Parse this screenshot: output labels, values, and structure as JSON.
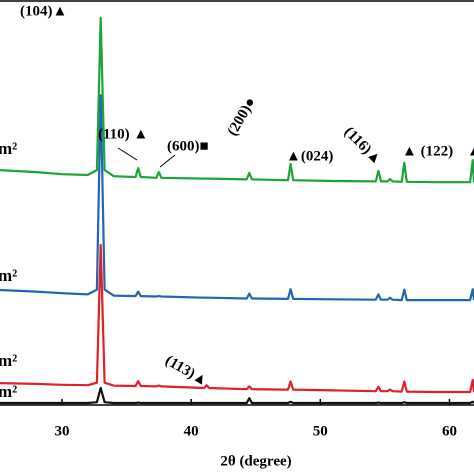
{
  "chart_data": {
    "type": "line",
    "x_label": "2θ (degree)",
    "x": [
      25.2,
      28,
      30,
      32,
      32.7,
      33.0,
      33.3,
      34,
      35.7,
      35.9,
      36.1,
      37.3,
      37.5,
      37.7,
      41,
      41.2,
      41.4,
      44.3,
      44.5,
      44.7,
      47.5,
      47.7,
      47.9,
      51,
      54.3,
      54.5,
      54.7,
      55.2,
      55.4,
      55.6,
      56.3,
      56.5,
      56.7,
      59,
      61.6,
      61.8,
      61.9
    ],
    "xlim": [
      25.2,
      61.9
    ],
    "xticks": [
      30,
      40,
      50,
      60
    ],
    "ylim": [
      0,
      100
    ],
    "series": [
      {
        "name": "m²",
        "color": "#1aa637",
        "values": [
          58,
          57.5,
          57,
          56.8,
          58,
          95.6,
          58,
          56.5,
          56.3,
          58.5,
          56.3,
          56.1,
          57.5,
          56.1,
          55.9,
          55.9,
          55.9,
          55.7,
          57.3,
          55.7,
          55.5,
          59.5,
          55.5,
          55.3,
          55.2,
          57.8,
          55.2,
          55.2,
          55.8,
          55.2,
          55.1,
          59.8,
          55.1,
          55,
          55,
          60.5,
          55
        ]
      },
      {
        "name": "m²",
        "color": "#2166b0",
        "values": [
          28.4,
          28,
          27.6,
          27.3,
          28.5,
          76.5,
          28.5,
          27,
          26.9,
          28,
          26.9,
          26.8,
          26.9,
          26.8,
          26.5,
          26.5,
          26.5,
          26.3,
          27.5,
          26.3,
          26.2,
          28.6,
          26.2,
          26.1,
          26,
          27.3,
          26,
          26,
          26.5,
          26,
          25.9,
          28.5,
          25.9,
          25.9,
          25.9,
          28.6,
          25.9
        ]
      },
      {
        "name": "m²",
        "color": "#e0202a",
        "values": [
          5.4,
          5.2,
          5,
          4.9,
          5.5,
          39.5,
          5.5,
          4.8,
          4.7,
          5.9,
          4.7,
          4.6,
          4.8,
          4.6,
          4.2,
          4.9,
          4.2,
          3.9,
          4.6,
          3.9,
          3.8,
          5.8,
          3.8,
          3.6,
          3.4,
          4.5,
          3.4,
          3.4,
          3.8,
          3.4,
          3.3,
          5.8,
          3.3,
          3.2,
          3.2,
          6.2,
          3.2
        ]
      },
      {
        "name": "m²",
        "color": "#111111",
        "values": [
          0.5,
          0.5,
          0.5,
          0.5,
          0.7,
          4.2,
          0.7,
          0.5,
          0.5,
          0.6,
          0.5,
          0.5,
          0.5,
          0.5,
          0.5,
          0.5,
          0.5,
          0.5,
          1.7,
          0.5,
          0.5,
          0.8,
          0.5,
          0.5,
          0.5,
          0.6,
          0.5,
          0.5,
          0.5,
          0.5,
          0.5,
          0.7,
          0.5,
          0.5,
          0.5,
          0.8,
          0.5
        ]
      }
    ],
    "annotations": [
      "(104)▲",
      "(110) ▲",
      "(600)■",
      "(200)●",
      "▲(024)",
      "(116)▲",
      "▲ (122)",
      "▲",
      "(113)▲"
    ]
  }
}
